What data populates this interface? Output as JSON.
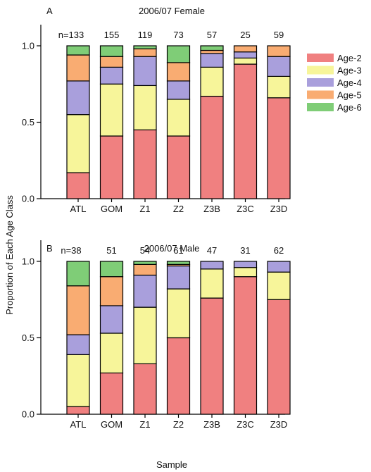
{
  "chart_data": [
    {
      "type": "bar",
      "stacked": true,
      "panel_label": "A",
      "title": "2006/07 Female",
      "categories": [
        "ATL",
        "GOM",
        "Z1",
        "Z2",
        "Z3B",
        "Z3C",
        "Z3D"
      ],
      "n_labels": [
        "n=133",
        "155",
        "119",
        "73",
        "57",
        "25",
        "59"
      ],
      "ylim": [
        0,
        1
      ],
      "yticks": [
        "0.0",
        "0.5",
        "1.0"
      ],
      "series": [
        {
          "name": "Age-2",
          "color": "#f08080",
          "values": [
            0.17,
            0.41,
            0.45,
            0.41,
            0.67,
            0.88,
            0.66
          ]
        },
        {
          "name": "Age-3",
          "color": "#f7f59a",
          "values": [
            0.38,
            0.34,
            0.29,
            0.24,
            0.19,
            0.04,
            0.14
          ]
        },
        {
          "name": "Age-4",
          "color": "#a99fdc",
          "values": [
            0.22,
            0.11,
            0.19,
            0.12,
            0.09,
            0.04,
            0.13
          ]
        },
        {
          "name": "Age-5",
          "color": "#f9ac72",
          "values": [
            0.17,
            0.07,
            0.05,
            0.12,
            0.02,
            0.04,
            0.07
          ]
        },
        {
          "name": "Age-6",
          "color": "#7fcd77",
          "values": [
            0.06,
            0.07,
            0.02,
            0.11,
            0.03,
            0.0,
            0.0
          ]
        }
      ]
    },
    {
      "type": "bar",
      "stacked": true,
      "panel_label": "B",
      "title": "2006/07 Male",
      "categories": [
        "ATL",
        "GOM",
        "Z1",
        "Z2",
        "Z3B",
        "Z3C",
        "Z3D"
      ],
      "n_labels": [
        "n=38",
        "51",
        "54",
        "61",
        "47",
        "31",
        "62"
      ],
      "ylim": [
        0,
        1
      ],
      "yticks": [
        "0.0",
        "0.5",
        "1.0"
      ],
      "series": [
        {
          "name": "Age-2",
          "color": "#f08080",
          "values": [
            0.05,
            0.27,
            0.33,
            0.5,
            0.76,
            0.9,
            0.75
          ]
        },
        {
          "name": "Age-3",
          "color": "#f7f59a",
          "values": [
            0.34,
            0.26,
            0.37,
            0.32,
            0.19,
            0.06,
            0.18
          ]
        },
        {
          "name": "Age-4",
          "color": "#a99fdc",
          "values": [
            0.13,
            0.18,
            0.21,
            0.15,
            0.05,
            0.04,
            0.07
          ]
        },
        {
          "name": "Age-5",
          "color": "#f9ac72",
          "values": [
            0.32,
            0.19,
            0.07,
            0.01,
            0.0,
            0.0,
            0.0
          ]
        },
        {
          "name": "Age-6",
          "color": "#7fcd77",
          "values": [
            0.16,
            0.1,
            0.02,
            0.02,
            0.0,
            0.0,
            0.0
          ]
        }
      ]
    }
  ],
  "ylabel": "Proportion of Each Age Class",
  "xlabel": "Sample",
  "legend": {
    "position": "right",
    "items": [
      {
        "label": "Age-2",
        "color": "#f08080"
      },
      {
        "label": "Age-3",
        "color": "#f7f59a"
      },
      {
        "label": "Age-4",
        "color": "#a99fdc"
      },
      {
        "label": "Age-5",
        "color": "#f9ac72"
      },
      {
        "label": "Age-6",
        "color": "#7fcd77"
      }
    ]
  }
}
